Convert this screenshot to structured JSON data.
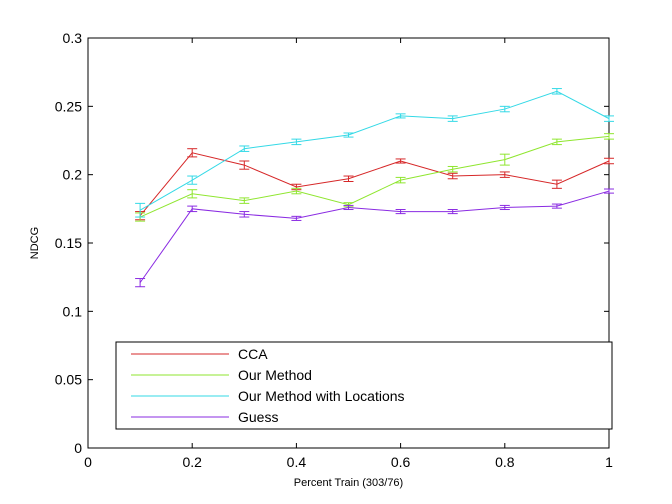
{
  "chart_data": {
    "type": "line",
    "xlabel": "Percent Train (303/76)",
    "ylabel": "NDCG",
    "xlim": [
      0,
      1
    ],
    "ylim": [
      0,
      0.3
    ],
    "xticks": [
      0,
      0.2,
      0.4,
      0.6,
      0.8,
      1
    ],
    "yticks": [
      0,
      0.05,
      0.1,
      0.15,
      0.2,
      0.25,
      0.3
    ],
    "xtick_labels": [
      "0",
      "0.2",
      "0.4",
      "0.6",
      "0.8",
      "1"
    ],
    "ytick_labels": [
      "0",
      "0.05",
      "0.1",
      "0.15",
      "0.2",
      "0.25",
      "0.3"
    ],
    "grid": false,
    "legend_position": "bottom",
    "x": [
      0.1,
      0.2,
      0.3,
      0.4,
      0.5,
      0.6,
      0.7,
      0.8,
      0.9,
      1.0
    ],
    "series": [
      {
        "name": "CCA",
        "color": "#d62728",
        "values": [
          0.17,
          0.216,
          0.207,
          0.191,
          0.197,
          0.21,
          0.199,
          0.2,
          0.193,
          0.21
        ],
        "errors": [
          0.003,
          0.003,
          0.003,
          0.002,
          0.002,
          0.0015,
          0.002,
          0.002,
          0.003,
          0.002
        ]
      },
      {
        "name": "Our Method",
        "color": "#8fe62f",
        "values": [
          0.169,
          0.186,
          0.181,
          0.188,
          0.178,
          0.196,
          0.204,
          0.211,
          0.224,
          0.228
        ],
        "errors": [
          0.003,
          0.003,
          0.002,
          0.002,
          0.0015,
          0.002,
          0.002,
          0.004,
          0.002,
          0.002
        ]
      },
      {
        "name": "Our Method with Locations",
        "color": "#33d9e6",
        "values": [
          0.174,
          0.196,
          0.219,
          0.224,
          0.229,
          0.243,
          0.241,
          0.248,
          0.261,
          0.241
        ],
        "errors": [
          0.005,
          0.003,
          0.002,
          0.002,
          0.0015,
          0.0015,
          0.002,
          0.002,
          0.002,
          0.002
        ]
      },
      {
        "name": "Guess",
        "color": "#8a2be2",
        "values": [
          0.121,
          0.175,
          0.171,
          0.168,
          0.176,
          0.173,
          0.173,
          0.176,
          0.177,
          0.188
        ],
        "errors": [
          0.003,
          0.002,
          0.002,
          0.0015,
          0.0015,
          0.0015,
          0.0015,
          0.0015,
          0.0015,
          0.0015
        ]
      }
    ]
  }
}
